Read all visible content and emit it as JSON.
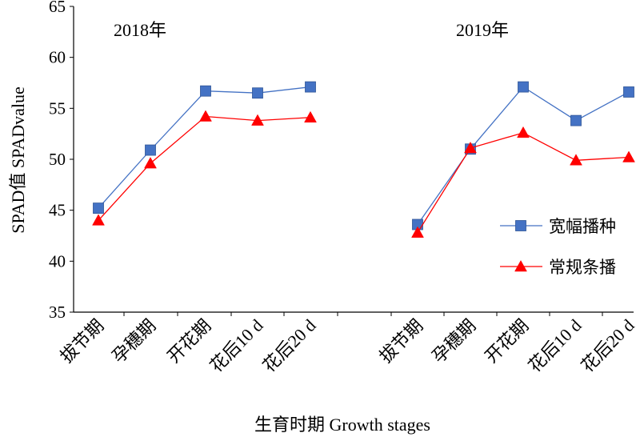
{
  "chart_data": {
    "type": "line",
    "ylabel": "SPAD值 SPADvalue",
    "xlabel": "生育时期 Growth stages",
    "ylim": [
      35,
      65
    ],
    "yticks": [
      35,
      40,
      45,
      50,
      55,
      60,
      65
    ],
    "grid": false,
    "legend_position": "right",
    "categories": [
      "拔节期",
      "孕穗期",
      "开花期",
      "花后10 d",
      "花后20 d"
    ],
    "panels": [
      {
        "title": "2018年",
        "series": [
          {
            "name": "宽幅播种",
            "values": [
              45.2,
              50.9,
              56.7,
              56.5,
              57.1
            ]
          },
          {
            "name": "常规条播",
            "values": [
              44.0,
              49.6,
              54.2,
              53.8,
              54.1
            ]
          }
        ]
      },
      {
        "title": "2019年",
        "series": [
          {
            "name": "宽幅播种",
            "values": [
              43.6,
              51.0,
              57.1,
              53.8,
              56.6
            ]
          },
          {
            "name": "常规条播",
            "values": [
              42.8,
              51.1,
              52.6,
              49.9,
              50.2
            ]
          }
        ]
      }
    ],
    "legend": [
      {
        "name": "宽幅播种",
        "color": "#4472C4",
        "marker": "square"
      },
      {
        "name": "常规条播",
        "color": "#FF0000",
        "marker": "triangle"
      }
    ]
  }
}
